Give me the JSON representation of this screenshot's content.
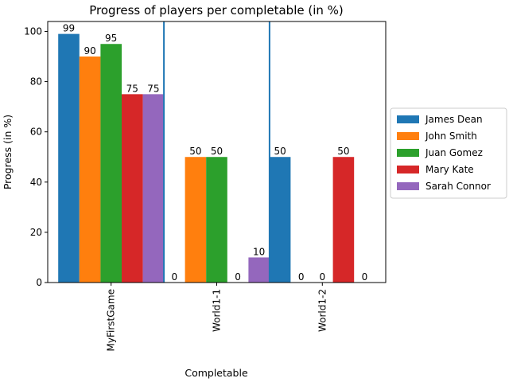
{
  "chart_data": {
    "type": "bar",
    "title": "Progress of players per completable (in %)",
    "xlabel": "Completable",
    "ylabel": "Progress (in %)",
    "ylim": [
      0,
      103.95
    ],
    "yticks": [
      0,
      20,
      40,
      60,
      80,
      100
    ],
    "categories": [
      "MyFirstGame",
      "World1-1",
      "World1-2"
    ],
    "series": [
      {
        "name": "James Dean",
        "color": "#1f77b4",
        "values": [
          99,
          0,
          50
        ]
      },
      {
        "name": "John Smith",
        "color": "#ff7f0e",
        "values": [
          90,
          50,
          0
        ]
      },
      {
        "name": "Juan Gomez",
        "color": "#2ca02c",
        "values": [
          95,
          50,
          0
        ]
      },
      {
        "name": "Mary Kate",
        "color": "#d62728",
        "values": [
          75,
          0,
          50
        ]
      },
      {
        "name": "Sarah Connor",
        "color": "#9467bd",
        "values": [
          75,
          10,
          0
        ]
      }
    ],
    "separator_color": "#1f77b4",
    "legend_position": "center-right, outside plot",
    "grid": false,
    "tick_label_rotation": "vertical"
  }
}
